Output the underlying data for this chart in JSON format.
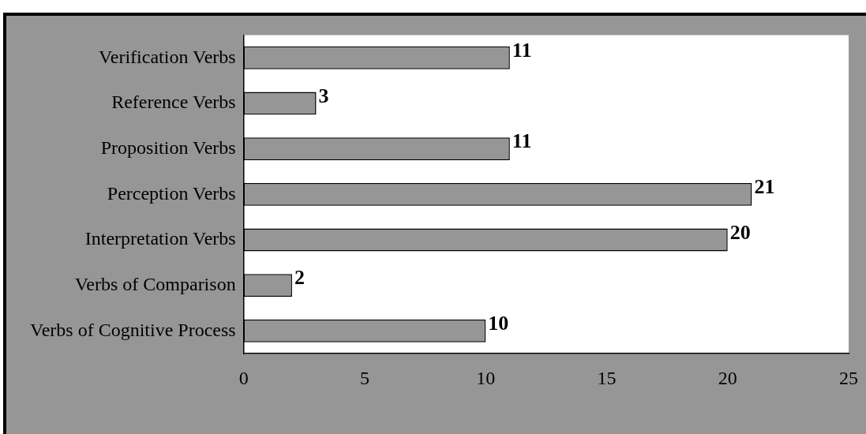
{
  "chart_data": {
    "type": "bar",
    "orientation": "horizontal",
    "categories": [
      "Verification Verbs",
      "Reference Verbs",
      "Proposition Verbs",
      "Perception Verbs",
      "Interpretation Verbs",
      "Verbs of Comparison",
      "Verbs of Cognitive Process"
    ],
    "values": [
      11,
      3,
      11,
      21,
      20,
      2,
      10
    ],
    "color": "#969696",
    "xlim": [
      0,
      25
    ],
    "xticks": [
      0,
      5,
      10,
      15,
      20,
      25
    ],
    "grid": false,
    "legend": false,
    "data_labels": true
  }
}
